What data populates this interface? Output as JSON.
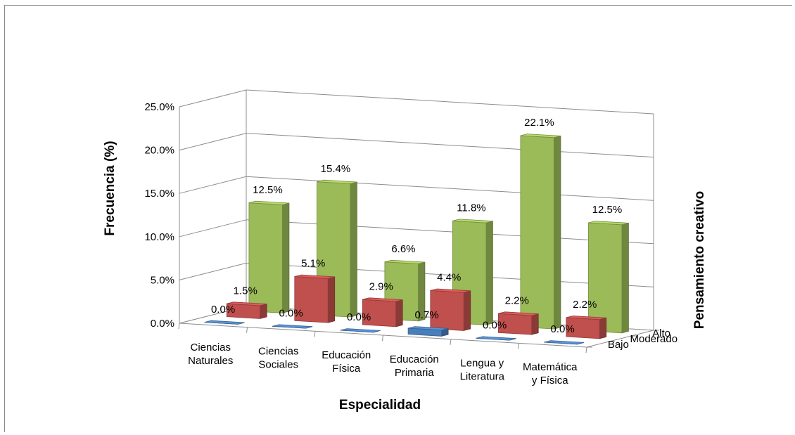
{
  "chart_data": {
    "type": "bar",
    "subtype": "3d-column",
    "title": "",
    "xlabel": "Especialidad",
    "ylabel": "Frecuencia (%)",
    "zlabel": "Pensamiento creativo",
    "ylim": [
      0,
      25
    ],
    "yticks": [
      "0.0%",
      "5.0%",
      "10.0%",
      "15.0%",
      "20.0%",
      "25.0%"
    ],
    "grid": true,
    "categories": [
      [
        "Ciencias",
        "Naturales"
      ],
      [
        "Ciencias",
        "Sociales"
      ],
      [
        "Educación",
        "Física"
      ],
      [
        "Educación",
        "Primaria"
      ],
      [
        "Lengua y",
        "Literatura"
      ],
      [
        "Matemática",
        "y Física"
      ]
    ],
    "series": [
      {
        "name": "Bajo",
        "color": "#4a7ebb",
        "values": [
          0.0,
          0.0,
          0.0,
          0.7,
          0.0,
          0.0
        ],
        "labels": [
          "0.0%",
          "0.0%",
          "0.0%",
          "0.7%",
          "0.0%",
          "0.0%"
        ]
      },
      {
        "name": "Moderado",
        "color": "#c0504d",
        "values": [
          1.5,
          5.1,
          2.9,
          4.4,
          2.2,
          2.2
        ],
        "labels": [
          "1.5%",
          "5.1%",
          "2.9%",
          "4.4%",
          "2.2%",
          "2.2%"
        ]
      },
      {
        "name": "Alto",
        "color": "#9bbb59",
        "values": [
          12.5,
          15.4,
          6.6,
          11.8,
          22.1,
          12.5
        ],
        "labels": [
          "12.5%",
          "15.4%",
          "6.6%",
          "11.8%",
          "22.1%",
          "12.5%"
        ]
      }
    ]
  }
}
